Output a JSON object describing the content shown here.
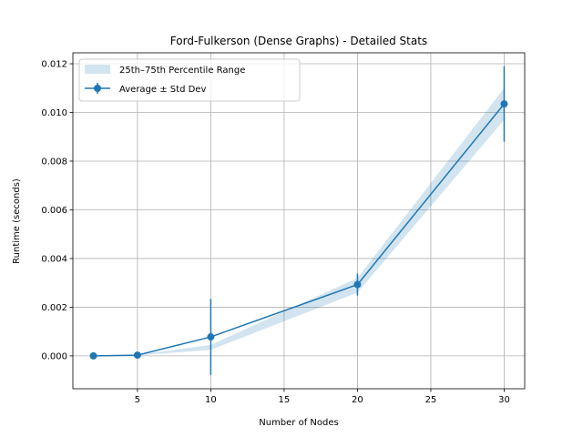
{
  "chart_data": {
    "type": "line",
    "title": "Ford-Fulkerson (Dense Graphs) - Detailed Stats",
    "xlabel": "Number of Nodes",
    "ylabel": "Runtime (seconds)",
    "xlim": [
      0.6,
      31.4
    ],
    "ylim": [
      -0.00135,
      0.01245
    ],
    "x_ticks": [
      5,
      10,
      15,
      20,
      25,
      30
    ],
    "x_tick_labels": [
      "5",
      "10",
      "15",
      "20",
      "25",
      "30"
    ],
    "y_ticks": [
      0.0,
      0.002,
      0.004,
      0.006,
      0.008,
      0.01,
      0.012
    ],
    "y_tick_labels": [
      "0.000",
      "0.002",
      "0.004",
      "0.006",
      "0.008",
      "0.010",
      "0.012"
    ],
    "grid": true,
    "legend_position": "top-left",
    "colors": {
      "line": "#1f77b4",
      "band": "#1f77b4"
    },
    "series": [
      {
        "name": "Average ± Std Dev",
        "kind": "errorbar-line",
        "x": [
          2,
          5,
          10,
          20,
          30
        ],
        "y": [
          0.0,
          3e-05,
          0.00078,
          0.00293,
          0.01035
        ],
        "std": [
          1e-05,
          2e-05,
          0.00156,
          0.00045,
          0.00155
        ]
      },
      {
        "name": "25th–75th Percentile Range",
        "kind": "band",
        "x": [
          2,
          5,
          10,
          20,
          30
        ],
        "low": [
          0.0,
          2e-05,
          0.00025,
          0.0026,
          0.0097
        ],
        "high": [
          0.0,
          5e-05,
          0.00045,
          0.0032,
          0.011
        ]
      }
    ]
  }
}
